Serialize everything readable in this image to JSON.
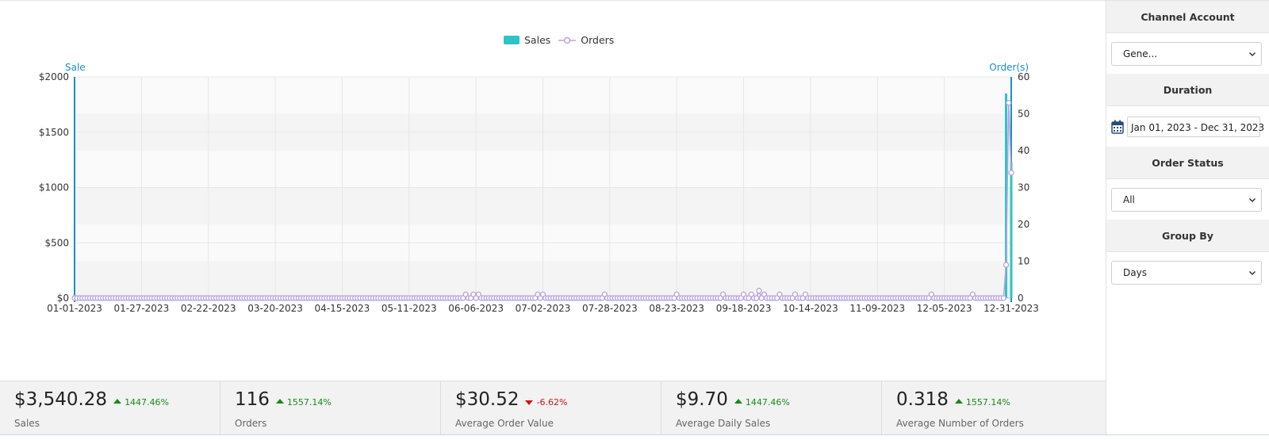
{
  "chart_data": {
    "type": "bar+line",
    "legend": [
      "Sales",
      "Orders"
    ],
    "legend_position": "top-center",
    "left_axis": {
      "label": "Sale",
      "ticks": [
        "$2000",
        "$1500",
        "$1000",
        "$500",
        "$0"
      ],
      "range": [
        0,
        2000
      ]
    },
    "right_axis": {
      "label": "Order(s)",
      "ticks": [
        "60",
        "50",
        "40",
        "30",
        "20",
        "10",
        "0"
      ],
      "range": [
        0,
        60
      ]
    },
    "x_range": [
      "2023-01-01",
      "2023-12-31"
    ],
    "x_ticks": [
      "01-01-2023",
      "01-27-2023",
      "02-22-2023",
      "03-20-2023",
      "04-15-2023",
      "05-11-2023",
      "06-06-2023",
      "07-02-2023",
      "07-28-2023",
      "08-23-2023",
      "09-18-2023",
      "10-14-2023",
      "11-09-2023",
      "12-05-2023",
      "12-31-2023"
    ],
    "series": [
      {
        "name": "Sales",
        "type": "bar",
        "color": "#2ec3c8",
        "points": [
          {
            "x": "2023-12-29",
            "y": 1850
          },
          {
            "x": "2023-12-31",
            "y": 1230
          }
        ]
      },
      {
        "name": "Orders",
        "type": "line",
        "color": "#b8a4e0",
        "points": [
          {
            "x": "2023-06-02",
            "y": 1
          },
          {
            "x": "2023-06-05",
            "y": 1
          },
          {
            "x": "2023-06-07",
            "y": 1
          },
          {
            "x": "2023-06-30",
            "y": 1
          },
          {
            "x": "2023-07-02",
            "y": 1
          },
          {
            "x": "2023-07-26",
            "y": 1
          },
          {
            "x": "2023-08-23",
            "y": 1
          },
          {
            "x": "2023-09-10",
            "y": 1
          },
          {
            "x": "2023-09-18",
            "y": 1
          },
          {
            "x": "2023-09-21",
            "y": 1
          },
          {
            "x": "2023-09-24",
            "y": 2
          },
          {
            "x": "2023-09-26",
            "y": 1
          },
          {
            "x": "2023-10-02",
            "y": 1
          },
          {
            "x": "2023-10-08",
            "y": 1
          },
          {
            "x": "2023-10-12",
            "y": 1
          },
          {
            "x": "2023-11-30",
            "y": 1
          },
          {
            "x": "2023-12-16",
            "y": 1
          },
          {
            "x": "2023-12-29",
            "y": 9
          },
          {
            "x": "2023-12-30",
            "y": 53
          },
          {
            "x": "2023-12-31",
            "y": 34
          }
        ]
      }
    ]
  },
  "stats": [
    {
      "value": "$3,540.28",
      "change": "1447.46%",
      "direction": "up",
      "label": "Sales"
    },
    {
      "value": "116",
      "change": "1557.14%",
      "direction": "up",
      "label": "Orders"
    },
    {
      "value": "$30.52",
      "change": "-6.62%",
      "direction": "down",
      "label": "Average Order Value"
    },
    {
      "value": "$9.70",
      "change": "1447.46%",
      "direction": "up",
      "label": "Average Daily Sales"
    },
    {
      "value": "0.318",
      "change": "1557.14%",
      "direction": "up",
      "label": "Average Number of Orders"
    }
  ],
  "sidebar": {
    "channel_account": {
      "title": "Channel Account",
      "value": "Gene..."
    },
    "duration": {
      "title": "Duration",
      "value": "Jan 01, 2023 - Dec 31, 2023",
      "icon": "calendar-icon"
    },
    "order_status": {
      "title": "Order Status",
      "value": "All"
    },
    "group_by": {
      "title": "Group By",
      "value": "Days"
    }
  }
}
